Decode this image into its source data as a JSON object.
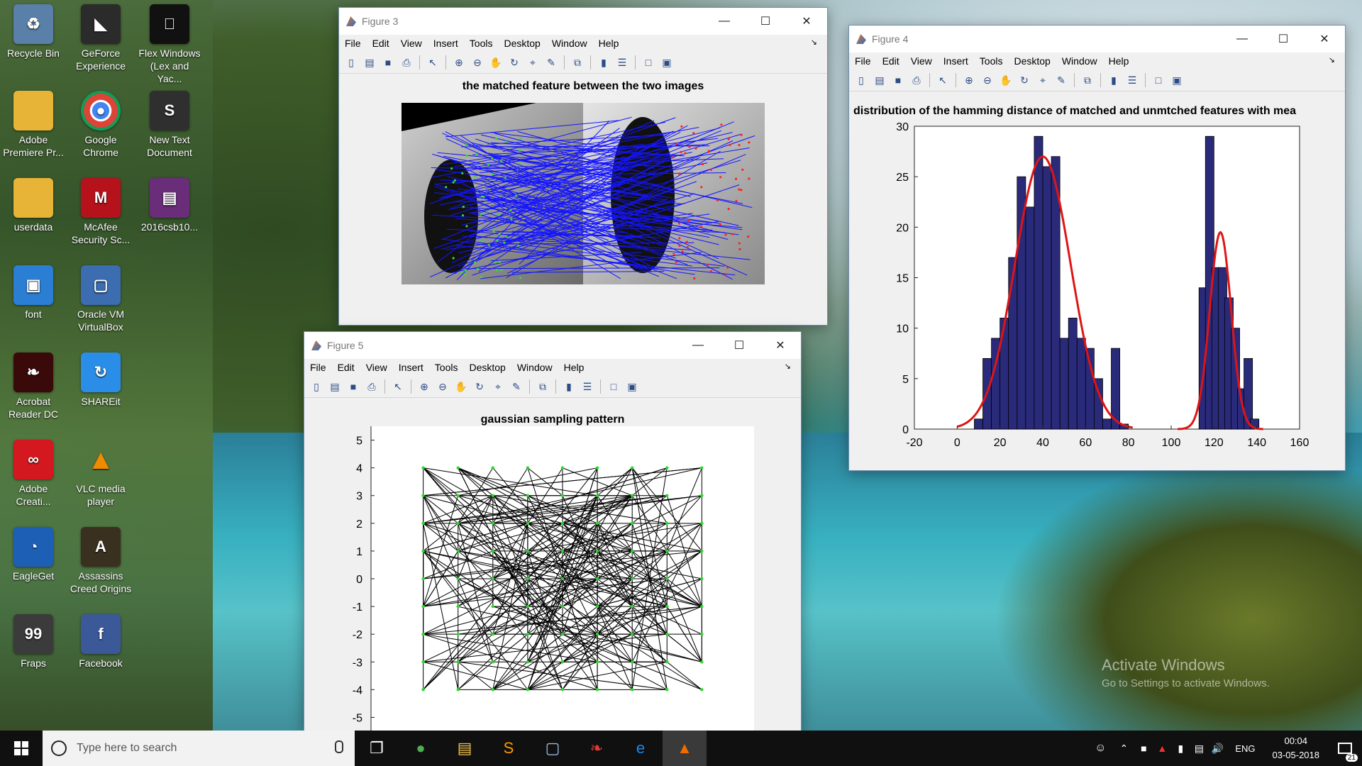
{
  "desktop": {
    "icons": [
      {
        "label": "Recycle Bin",
        "icon": "recycle-bin-icon",
        "color": "#5a7fa8"
      },
      {
        "label": "GeForce Experience",
        "icon": "geforce-icon",
        "color": "#2b2b2b"
      },
      {
        "label": "Flex Windows (Lex and Yac...",
        "icon": "apple-logo-icon",
        "color": "#111111"
      },
      {
        "label": "Adobe Premiere Pr...",
        "icon": "folder-icon",
        "color": "#e8b437"
      },
      {
        "label": "Google Chrome",
        "icon": "chrome-icon",
        "color": "#ffffff"
      },
      {
        "label": "New Text Document",
        "icon": "sublime-icon",
        "color": "#2f2f2f"
      },
      {
        "label": "userdata",
        "icon": "folder-icon",
        "color": "#e8b437"
      },
      {
        "label": "McAfee Security Sc...",
        "icon": "mcafee-icon",
        "color": "#b5121b"
      },
      {
        "label": "2016csb10...",
        "icon": "winrar-icon",
        "color": "#6a2d7a"
      },
      {
        "label": "font",
        "icon": "font-file-icon",
        "color": "#2a7fd4"
      },
      {
        "label": "Oracle VM VirtualBox",
        "icon": "virtualbox-icon",
        "color": "#3b6db0"
      },
      {
        "label": "Acrobat Reader DC",
        "icon": "acrobat-icon",
        "color": "#3a0a0a"
      },
      {
        "label": "SHAREit",
        "icon": "shareit-icon",
        "color": "#2a8ee8"
      },
      {
        "label": "Adobe Creati...",
        "icon": "creative-cloud-icon",
        "color": "#d4181f"
      },
      {
        "label": "VLC media player",
        "icon": "vlc-icon",
        "color": "#f08a00"
      },
      {
        "label": "EagleGet",
        "icon": "eagleget-icon",
        "color": "#1d5fb5"
      },
      {
        "label": "Assassins Creed Origins",
        "icon": "assassins-creed-icon",
        "color": "#3a3020"
      },
      {
        "label": "Fraps",
        "icon": "fraps-icon",
        "color": "#3b3b3b"
      },
      {
        "label": "Facebook",
        "icon": "facebook-icon",
        "color": "#3b5998"
      }
    ],
    "watermark_line1": "Activate Windows",
    "watermark_line2": "Go to Settings to activate Windows."
  },
  "menu_items": [
    "File",
    "Edit",
    "View",
    "Insert",
    "Tools",
    "Desktop",
    "Window",
    "Help"
  ],
  "figure3": {
    "title": "Figure 3",
    "plot_title": "the matched feature between the two images"
  },
  "figure4": {
    "title": "Figure 4",
    "plot_title": "distribution of the hamming distance of matched and unmtched features with mea",
    "chart_data": {
      "type": "bar",
      "title": "distribution of the hamming distance of matched and unmtched features with mea",
      "xlim": [
        -20,
        160
      ],
      "ylim": [
        0,
        30
      ],
      "xticks": [
        -20,
        0,
        20,
        40,
        60,
        80,
        100,
        120,
        140,
        160
      ],
      "yticks": [
        0,
        5,
        10,
        15,
        20,
        25,
        30
      ],
      "bar_width": 4,
      "bars": [
        {
          "x": 10,
          "y": 1
        },
        {
          "x": 14,
          "y": 7
        },
        {
          "x": 18,
          "y": 9
        },
        {
          "x": 22,
          "y": 11
        },
        {
          "x": 26,
          "y": 17
        },
        {
          "x": 30,
          "y": 25
        },
        {
          "x": 34,
          "y": 22
        },
        {
          "x": 38,
          "y": 29
        },
        {
          "x": 42,
          "y": 26
        },
        {
          "x": 46,
          "y": 27
        },
        {
          "x": 50,
          "y": 9
        },
        {
          "x": 54,
          "y": 11
        },
        {
          "x": 58,
          "y": 9
        },
        {
          "x": 62,
          "y": 8
        },
        {
          "x": 66,
          "y": 5
        },
        {
          "x": 70,
          "y": 1
        },
        {
          "x": 74,
          "y": 8
        },
        {
          "x": 78,
          "y": 0.5
        },
        {
          "x": 115,
          "y": 14
        },
        {
          "x": 118,
          "y": 29
        },
        {
          "x": 121,
          "y": 16
        },
        {
          "x": 124,
          "y": 16
        },
        {
          "x": 127,
          "y": 13
        },
        {
          "x": 130,
          "y": 10
        },
        {
          "x": 133,
          "y": 4
        },
        {
          "x": 136,
          "y": 7
        },
        {
          "x": 139,
          "y": 1
        }
      ],
      "bar_color": "#2a2a7a",
      "curve_color": "#e01414",
      "fits": [
        {
          "mean": 40,
          "sigma": 13,
          "peak": 27,
          "from": 0,
          "to": 82
        },
        {
          "mean": 123,
          "sigma": 5,
          "peak": 19.5,
          "from": 103,
          "to": 143
        }
      ]
    }
  },
  "figure5": {
    "title": "Figure 5",
    "plot_title": "gaussian sampling pattern",
    "chart_data": {
      "type": "scatter",
      "title": "gaussian sampling pattern",
      "xlim": [
        -5.5,
        5.5
      ],
      "ylim": [
        -5.5,
        5.5
      ],
      "yticks": [
        5,
        4,
        3,
        2,
        1,
        0,
        -1,
        -2,
        -3,
        -4,
        -5
      ],
      "grid_xs": [
        -4,
        -3,
        -2,
        -1,
        0,
        1,
        2,
        3,
        4
      ],
      "grid_ys": [
        -4,
        -3,
        -2,
        -1,
        0,
        1,
        2,
        3,
        4
      ],
      "point_color": "#22dd22",
      "line_color": "#000000",
      "line_count": 256
    }
  },
  "taskbar": {
    "search_placeholder": "Type here to search",
    "language": "ENG",
    "time": "00:04",
    "date": "03-05-2018",
    "notifications": "21",
    "apps": [
      "task-view-icon",
      "chrome-icon",
      "file-explorer-icon",
      "sublime-icon",
      "virtualbox-icon",
      "acrobat-icon",
      "edge-icon",
      "matlab-icon"
    ]
  }
}
